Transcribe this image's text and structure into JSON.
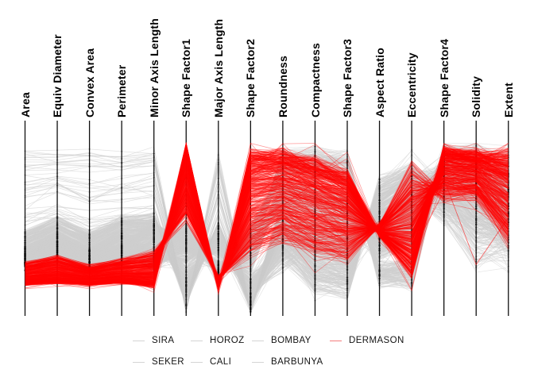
{
  "chart_data": {
    "type": "parallel_coordinates",
    "title": "",
    "xlabel": "",
    "ylabel": "",
    "tick_labels": "none (axes unlabeled, min-max normalized per axis)",
    "grid": false,
    "axes": [
      "Area",
      "Equiv Diameter",
      "Convex Area",
      "Perimeter",
      "Minor Axis Length",
      "Shape Factor1",
      "Major Axis Length",
      "Shape Factor2",
      "Roundness",
      "Compactness",
      "Shape Factor3",
      "Aspect Ratio",
      "Eccentricity",
      "Shape Factor4",
      "Solidity",
      "Extent"
    ],
    "value_range": [
      0,
      1
    ],
    "series": [
      {
        "name": "SIRA",
        "role": "context",
        "color": "#cfcfcf",
        "alpha": 0.5,
        "count": 190,
        "bias": 1,
        "profile": [
          [
            0.26,
            0.34
          ],
          [
            0.3,
            0.4
          ],
          [
            0.25,
            0.33
          ],
          [
            0.29,
            0.38
          ],
          [
            0.3,
            0.41
          ],
          [
            0.5,
            0.35
          ],
          [
            0.21,
            0.3
          ],
          [
            0.45,
            0.24
          ],
          [
            0.62,
            0.76
          ],
          [
            0.58,
            0.72
          ],
          [
            0.52,
            0.66
          ],
          [
            0.44,
            0.34
          ],
          [
            0.53,
            0.4
          ],
          [
            0.79,
            0.89
          ],
          [
            0.73,
            0.85
          ],
          [
            0.59,
            0.77
          ]
        ],
        "jitter": [
          0.02,
          0.02,
          0.02,
          0.02,
          0.025,
          0.03,
          0.02,
          0.025,
          0.05,
          0.05,
          0.05,
          0.04,
          0.04,
          0.05,
          0.09,
          0.1
        ]
      },
      {
        "name": "SEKER",
        "role": "context",
        "color": "#cfcfcf",
        "alpha": 0.5,
        "count": 150,
        "bias": 1,
        "profile": [
          [
            0.28,
            0.37
          ],
          [
            0.34,
            0.45
          ],
          [
            0.27,
            0.36
          ],
          [
            0.3,
            0.4
          ],
          [
            0.4,
            0.52
          ],
          [
            0.52,
            0.38
          ],
          [
            0.2,
            0.28
          ],
          [
            0.5,
            0.3
          ],
          [
            0.8,
            0.91
          ],
          [
            0.8,
            0.92
          ],
          [
            0.74,
            0.9
          ],
          [
            0.27,
            0.18
          ],
          [
            0.3,
            0.16
          ],
          [
            0.84,
            0.93
          ],
          [
            0.79,
            0.9
          ],
          [
            0.69,
            0.87
          ]
        ],
        "jitter": [
          0.02,
          0.02,
          0.02,
          0.02,
          0.025,
          0.03,
          0.02,
          0.025,
          0.05,
          0.05,
          0.05,
          0.04,
          0.04,
          0.05,
          0.09,
          0.1
        ]
      },
      {
        "name": "HOROZ",
        "role": "context",
        "color": "#cfcfcf",
        "alpha": 0.5,
        "count": 150,
        "bias": 1,
        "profile": [
          [
            0.27,
            0.38
          ],
          [
            0.32,
            0.44
          ],
          [
            0.26,
            0.37
          ],
          [
            0.34,
            0.47
          ],
          [
            0.26,
            0.35
          ],
          [
            0.42,
            0.28
          ],
          [
            0.33,
            0.46
          ],
          [
            0.22,
            0.09
          ],
          [
            0.32,
            0.52
          ],
          [
            0.15,
            0.3
          ],
          [
            0.12,
            0.27
          ],
          [
            0.77,
            0.62
          ],
          [
            0.85,
            0.75
          ],
          [
            0.58,
            0.83
          ],
          [
            0.49,
            0.79
          ],
          [
            0.39,
            0.67
          ]
        ],
        "jitter": [
          0.02,
          0.02,
          0.02,
          0.02,
          0.025,
          0.03,
          0.02,
          0.025,
          0.05,
          0.05,
          0.05,
          0.04,
          0.04,
          0.05,
          0.09,
          0.1
        ]
      },
      {
        "name": "CALI",
        "role": "context",
        "color": "#cfcfcf",
        "alpha": 0.5,
        "count": 125,
        "bias": 1,
        "profile": [
          [
            0.34,
            0.46
          ],
          [
            0.42,
            0.54
          ],
          [
            0.34,
            0.45
          ],
          [
            0.41,
            0.53
          ],
          [
            0.43,
            0.54
          ],
          [
            0.22,
            0.1
          ],
          [
            0.41,
            0.52
          ],
          [
            0.1,
            0.03
          ],
          [
            0.42,
            0.6
          ],
          [
            0.3,
            0.46
          ],
          [
            0.25,
            0.42
          ],
          [
            0.64,
            0.5
          ],
          [
            0.75,
            0.63
          ],
          [
            0.62,
            0.86
          ],
          [
            0.46,
            0.77
          ],
          [
            0.43,
            0.71
          ]
        ],
        "jitter": [
          0.02,
          0.02,
          0.02,
          0.02,
          0.025,
          0.03,
          0.02,
          0.025,
          0.05,
          0.05,
          0.05,
          0.04,
          0.04,
          0.05,
          0.09,
          0.1
        ]
      },
      {
        "name": "BARBUNYA",
        "role": "context",
        "color": "#cfcfcf",
        "alpha": 0.5,
        "count": 110,
        "bias": 1,
        "profile": [
          [
            0.33,
            0.47
          ],
          [
            0.41,
            0.55
          ],
          [
            0.33,
            0.47
          ],
          [
            0.42,
            0.55
          ],
          [
            0.43,
            0.56
          ],
          [
            0.25,
            0.12
          ],
          [
            0.37,
            0.49
          ],
          [
            0.13,
            0.05
          ],
          [
            0.26,
            0.48
          ],
          [
            0.38,
            0.58
          ],
          [
            0.3,
            0.52
          ],
          [
            0.57,
            0.42
          ],
          [
            0.68,
            0.53
          ],
          [
            0.52,
            0.82
          ],
          [
            0.3,
            0.69
          ],
          [
            0.33,
            0.63
          ]
        ],
        "jitter": [
          0.02,
          0.02,
          0.02,
          0.02,
          0.025,
          0.03,
          0.02,
          0.025,
          0.05,
          0.05,
          0.05,
          0.04,
          0.04,
          0.05,
          0.09,
          0.1
        ]
      },
      {
        "name": "BOMBAY",
        "role": "context",
        "color": "#cbcbcb",
        "alpha": 0.55,
        "count": 42,
        "bias": 1,
        "profile": [
          [
            0.48,
            0.95
          ],
          [
            0.53,
            0.95
          ],
          [
            0.48,
            0.95
          ],
          [
            0.51,
            0.93
          ],
          [
            0.53,
            0.95
          ],
          [
            0.07,
            0.02
          ],
          [
            0.48,
            0.92
          ],
          [
            0.04,
            0.01
          ],
          [
            0.46,
            0.68
          ],
          [
            0.36,
            0.56
          ],
          [
            0.3,
            0.49
          ],
          [
            0.57,
            0.43
          ],
          [
            0.67,
            0.53
          ],
          [
            0.72,
            0.9
          ],
          [
            0.57,
            0.83
          ],
          [
            0.47,
            0.73
          ]
        ],
        "jitter": [
          0.03,
          0.03,
          0.03,
          0.03,
          0.03,
          0.02,
          0.03,
          0.012,
          0.05,
          0.05,
          0.05,
          0.04,
          0.04,
          0.04,
          0.06,
          0.07
        ]
      },
      {
        "name": "DERMASON",
        "role": "highlight",
        "color": "#ff0000",
        "alpha": 0.4,
        "count": 430,
        "bias": 1.7,
        "profile": [
          [
            0.17,
            0.29
          ],
          [
            0.18,
            0.33
          ],
          [
            0.17,
            0.27
          ],
          [
            0.18,
            0.31
          ],
          [
            0.16,
            0.35
          ],
          [
            0.96,
            0.55
          ],
          [
            0.14,
            0.21
          ],
          [
            0.91,
            0.35
          ],
          [
            0.91,
            0.42
          ],
          [
            0.86,
            0.34
          ],
          [
            0.78,
            0.3
          ],
          [
            0.45,
            0.51
          ],
          [
            0.26,
            0.82
          ],
          [
            0.94,
            0.66
          ],
          [
            0.91,
            0.67
          ],
          [
            0.89,
            0.42
          ]
        ],
        "jitter": [
          0.012,
          0.012,
          0.012,
          0.012,
          0.02,
          0.035,
          0.012,
          0.045,
          0.045,
          0.05,
          0.05,
          0.014,
          0.06,
          0.035,
          0.04,
          0.075
        ]
      }
    ],
    "highlight_outliers": [
      [
        0.2,
        0.22,
        0.2,
        0.21,
        0.22,
        0.75,
        0.16,
        0.65,
        0.8,
        0.7,
        0.68,
        0.47,
        0.42,
        0.77,
        0.28,
        0.55
      ],
      [
        0.26,
        0.3,
        0.25,
        0.28,
        0.3,
        0.6,
        0.2,
        0.5,
        0.62,
        0.75,
        0.72,
        0.46,
        0.35,
        0.7,
        0.72,
        0.5
      ]
    ],
    "legend": {
      "position": "bottom-center, 4 columns x 2 rows, no frame",
      "items": [
        {
          "label": "SIRA",
          "color": "#d4d4d4"
        },
        {
          "label": "HOROZ",
          "color": "#d4d4d4"
        },
        {
          "label": "BOMBAY",
          "color": "#d4d4d4"
        },
        {
          "label": "DERMASON",
          "color": "#f47c7c"
        },
        {
          "label": "SEKER",
          "color": "#d4d4d4"
        },
        {
          "label": "CALI",
          "color": "#d4d4d4"
        },
        {
          "label": "BARBUNYA",
          "color": "#d4d4d4"
        }
      ]
    },
    "colors": {
      "context_line": "#d3d3d3",
      "highlight_line": "#ff0000",
      "axis_line": "#101010",
      "label_text": "#000000"
    }
  }
}
